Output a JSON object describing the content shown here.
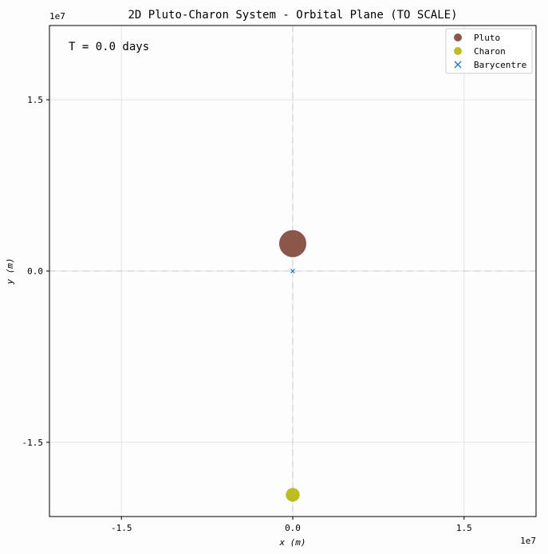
{
  "chart_data": {
    "type": "scatter",
    "title": "2D Pluto-Charon System - Orbital Plane (TO SCALE)",
    "xlabel": "x (m)",
    "ylabel": "y (m)",
    "xlim": [
      -21300000.0,
      21300000.0
    ],
    "ylim": [
      -21500000.0,
      21500000.0
    ],
    "xticks": [
      -15000000.0,
      0,
      15000000.0
    ],
    "yticks": [
      -15000000.0,
      0,
      15000000.0
    ],
    "xtick_labels": [
      "-1.5",
      "0.0",
      "1.5"
    ],
    "ytick_labels": [
      "-1.5",
      "0.0",
      "1.5"
    ],
    "x_offset_label": "1e7",
    "y_offset_label": "1e7",
    "grid": true,
    "legend_position": "top-right",
    "annotation": "T = 0.0 days",
    "series": [
      {
        "name": "Pluto",
        "x": [
          0
        ],
        "y": [
          2400000.0
        ],
        "radius_m": 1190000.0,
        "color": "#8c564b",
        "marker": "circle"
      },
      {
        "name": "Charon",
        "x": [
          0
        ],
        "y": [
          -19600000.0
        ],
        "radius_m": 606000.0,
        "color": "#bcbd22",
        "marker": "circle"
      },
      {
        "name": "Barycentre",
        "x": [
          0
        ],
        "y": [
          0
        ],
        "color": "#1f77b4",
        "marker": "x"
      }
    ]
  }
}
